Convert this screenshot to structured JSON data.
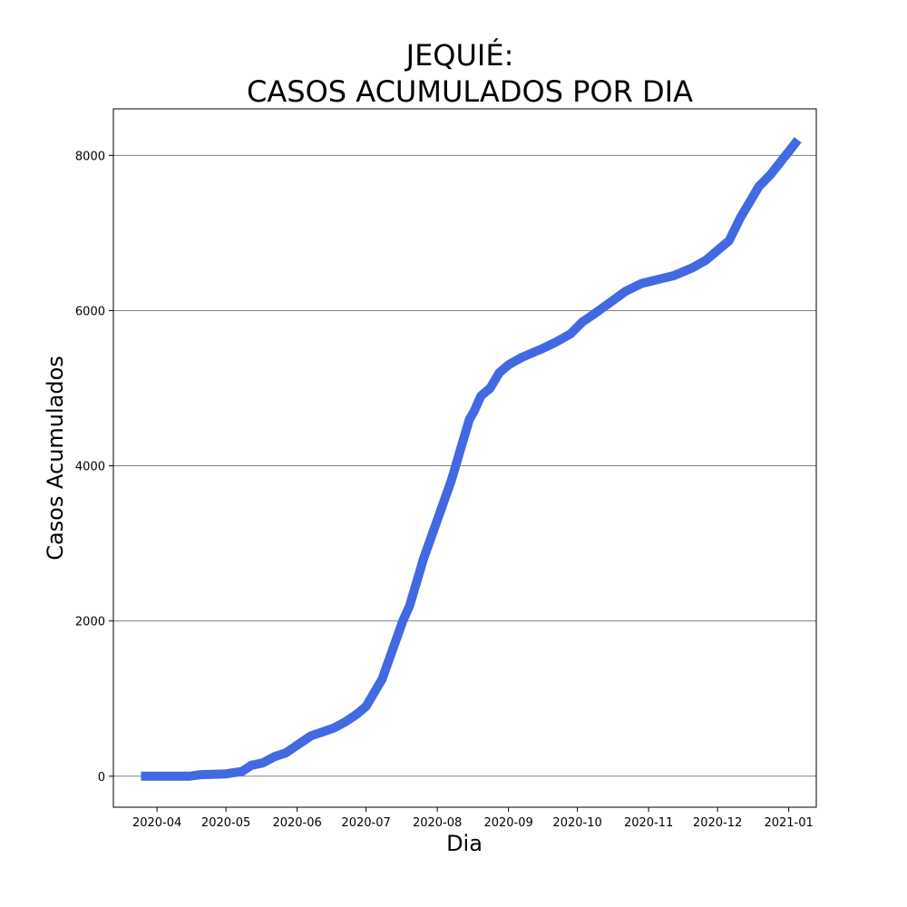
{
  "chart_data": {
    "type": "line",
    "title_line1": "JEQUIÉ:",
    "title_line2": "CASOS ACUMULADOS POR DIA",
    "xlabel": "Dia",
    "ylabel": "Casos Acumulados",
    "x_tick_labels": [
      "2020-04",
      "2020-05",
      "2020-06",
      "2020-07",
      "2020-08",
      "2020-09",
      "2020-10",
      "2020-11",
      "2020-12",
      "2021-01"
    ],
    "x_tick_dates": [
      "2020-04-01",
      "2020-05-01",
      "2020-06-01",
      "2020-07-01",
      "2020-08-01",
      "2020-09-01",
      "2020-10-01",
      "2020-11-01",
      "2020-12-01",
      "2021-01-01"
    ],
    "y_ticks": [
      0,
      2000,
      4000,
      6000,
      8000
    ],
    "y_tick_labels": [
      "0",
      "2000",
      "4000",
      "6000",
      "8000"
    ],
    "xlim": [
      "2020-03-13",
      "2021-01-13"
    ],
    "ylim": [
      -400,
      8600
    ],
    "grid": "horizontal",
    "line_color": "#4169e1",
    "series": [
      {
        "x": [
          "2020-03-25",
          "2020-04-05",
          "2020-04-15",
          "2020-04-20",
          "2020-05-01",
          "2020-05-08",
          "2020-05-12",
          "2020-05-17",
          "2020-05-22",
          "2020-05-27",
          "2020-06-01",
          "2020-06-07",
          "2020-06-12",
          "2020-06-17",
          "2020-06-22",
          "2020-06-27",
          "2020-07-01",
          "2020-07-05",
          "2020-07-08",
          "2020-07-11",
          "2020-07-14",
          "2020-07-17",
          "2020-07-20",
          "2020-07-23",
          "2020-07-26",
          "2020-07-29",
          "2020-08-01",
          "2020-08-04",
          "2020-08-07",
          "2020-08-09",
          "2020-08-11",
          "2020-08-13",
          "2020-08-15",
          "2020-08-17",
          "2020-08-20",
          "2020-08-24",
          "2020-08-28",
          "2020-09-01",
          "2020-09-07",
          "2020-09-15",
          "2020-09-22",
          "2020-09-28",
          "2020-10-03",
          "2020-10-08",
          "2020-10-15",
          "2020-10-22",
          "2020-10-29",
          "2020-11-05",
          "2020-11-12",
          "2020-11-20",
          "2020-11-26",
          "2020-12-02",
          "2020-12-06",
          "2020-12-11",
          "2020-12-15",
          "2020-12-19",
          "2020-12-24",
          "2020-12-28",
          "2021-01-01",
          "2021-01-05"
        ],
        "y": [
          0,
          0,
          0,
          20,
          30,
          60,
          140,
          170,
          250,
          300,
          400,
          520,
          570,
          620,
          700,
          800,
          900,
          1100,
          1250,
          1500,
          1750,
          2000,
          2200,
          2500,
          2800,
          3050,
          3300,
          3550,
          3800,
          4000,
          4200,
          4400,
          4600,
          4700,
          4900,
          5000,
          5200,
          5300,
          5400,
          5500,
          5600,
          5700,
          5850,
          5950,
          6100,
          6250,
          6350,
          6400,
          6450,
          6550,
          6650,
          6800,
          6900,
          7200,
          7400,
          7600,
          7750,
          7900,
          8050,
          8200
        ]
      }
    ]
  }
}
